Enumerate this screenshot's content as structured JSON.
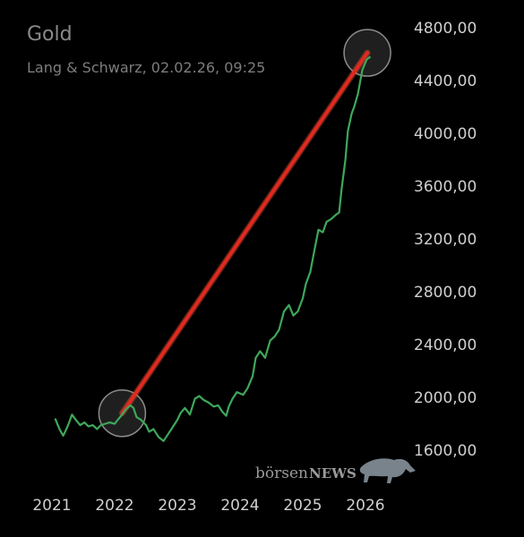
{
  "chart_data": {
    "type": "line",
    "title": "Gold",
    "subtitle": "Lang & Schwarz, 02.02.26, 09:25",
    "x_ticks": [
      "2021",
      "2022",
      "2023",
      "2024",
      "2025",
      "2026"
    ],
    "y_ticks": [
      "1600,00",
      "2000,00",
      "2400,00",
      "2800,00",
      "3200,00",
      "3600,00",
      "4000,00",
      "4400,00",
      "4800,00"
    ],
    "ylim": [
      1600,
      4800
    ],
    "xlim": [
      2021.0,
      2026.4
    ],
    "grid": false,
    "series": [
      {
        "color": "#3ea85a",
        "points": [
          [
            2021.05,
            1840
          ],
          [
            2021.12,
            1760
          ],
          [
            2021.18,
            1710
          ],
          [
            2021.25,
            1780
          ],
          [
            2021.32,
            1870
          ],
          [
            2021.38,
            1830
          ],
          [
            2021.45,
            1790
          ],
          [
            2021.52,
            1810
          ],
          [
            2021.58,
            1780
          ],
          [
            2021.65,
            1790
          ],
          [
            2021.72,
            1760
          ],
          [
            2021.78,
            1790
          ],
          [
            2021.85,
            1800
          ],
          [
            2021.92,
            1810
          ],
          [
            2022.0,
            1800
          ],
          [
            2022.05,
            1830
          ],
          [
            2022.12,
            1870
          ],
          [
            2022.18,
            1910
          ],
          [
            2022.25,
            1940
          ],
          [
            2022.3,
            1920
          ],
          [
            2022.35,
            1850
          ],
          [
            2022.42,
            1830
          ],
          [
            2022.5,
            1790
          ],
          [
            2022.55,
            1740
          ],
          [
            2022.62,
            1760
          ],
          [
            2022.7,
            1700
          ],
          [
            2022.78,
            1670
          ],
          [
            2022.85,
            1720
          ],
          [
            2022.92,
            1770
          ],
          [
            2023.0,
            1830
          ],
          [
            2023.05,
            1880
          ],
          [
            2023.12,
            1920
          ],
          [
            2023.2,
            1870
          ],
          [
            2023.28,
            1990
          ],
          [
            2023.35,
            2010
          ],
          [
            2023.42,
            1980
          ],
          [
            2023.5,
            1960
          ],
          [
            2023.58,
            1930
          ],
          [
            2023.65,
            1940
          ],
          [
            2023.72,
            1890
          ],
          [
            2023.78,
            1860
          ],
          [
            2023.82,
            1930
          ],
          [
            2023.88,
            1990
          ],
          [
            2023.95,
            2040
          ],
          [
            2024.05,
            2020
          ],
          [
            2024.12,
            2070
          ],
          [
            2024.2,
            2160
          ],
          [
            2024.25,
            2300
          ],
          [
            2024.32,
            2350
          ],
          [
            2024.4,
            2300
          ],
          [
            2024.48,
            2430
          ],
          [
            2024.55,
            2460
          ],
          [
            2024.62,
            2510
          ],
          [
            2024.7,
            2650
          ],
          [
            2024.78,
            2700
          ],
          [
            2024.85,
            2620
          ],
          [
            2024.92,
            2650
          ],
          [
            2025.0,
            2750
          ],
          [
            2025.05,
            2860
          ],
          [
            2025.12,
            2950
          ],
          [
            2025.18,
            3100
          ],
          [
            2025.25,
            3270
          ],
          [
            2025.32,
            3250
          ],
          [
            2025.38,
            3330
          ],
          [
            2025.45,
            3350
          ],
          [
            2025.52,
            3380
          ],
          [
            2025.58,
            3400
          ],
          [
            2025.62,
            3580
          ],
          [
            2025.68,
            3800
          ],
          [
            2025.72,
            4020
          ],
          [
            2025.78,
            4150
          ],
          [
            2025.82,
            4200
          ],
          [
            2025.88,
            4300
          ],
          [
            2025.95,
            4480
          ],
          [
            2026.02,
            4560
          ],
          [
            2026.08,
            4580
          ]
        ]
      }
    ],
    "annotation": {
      "type": "trend-line",
      "color": "#e02a1f",
      "from": [
        2022.12,
        1880
      ],
      "to": [
        2026.03,
        4610
      ]
    },
    "highlight_circles": [
      [
        2022.12,
        1880
      ],
      [
        2026.03,
        4610
      ]
    ]
  },
  "watermark": {
    "text_a": "börsen",
    "text_b": "NEWS"
  }
}
